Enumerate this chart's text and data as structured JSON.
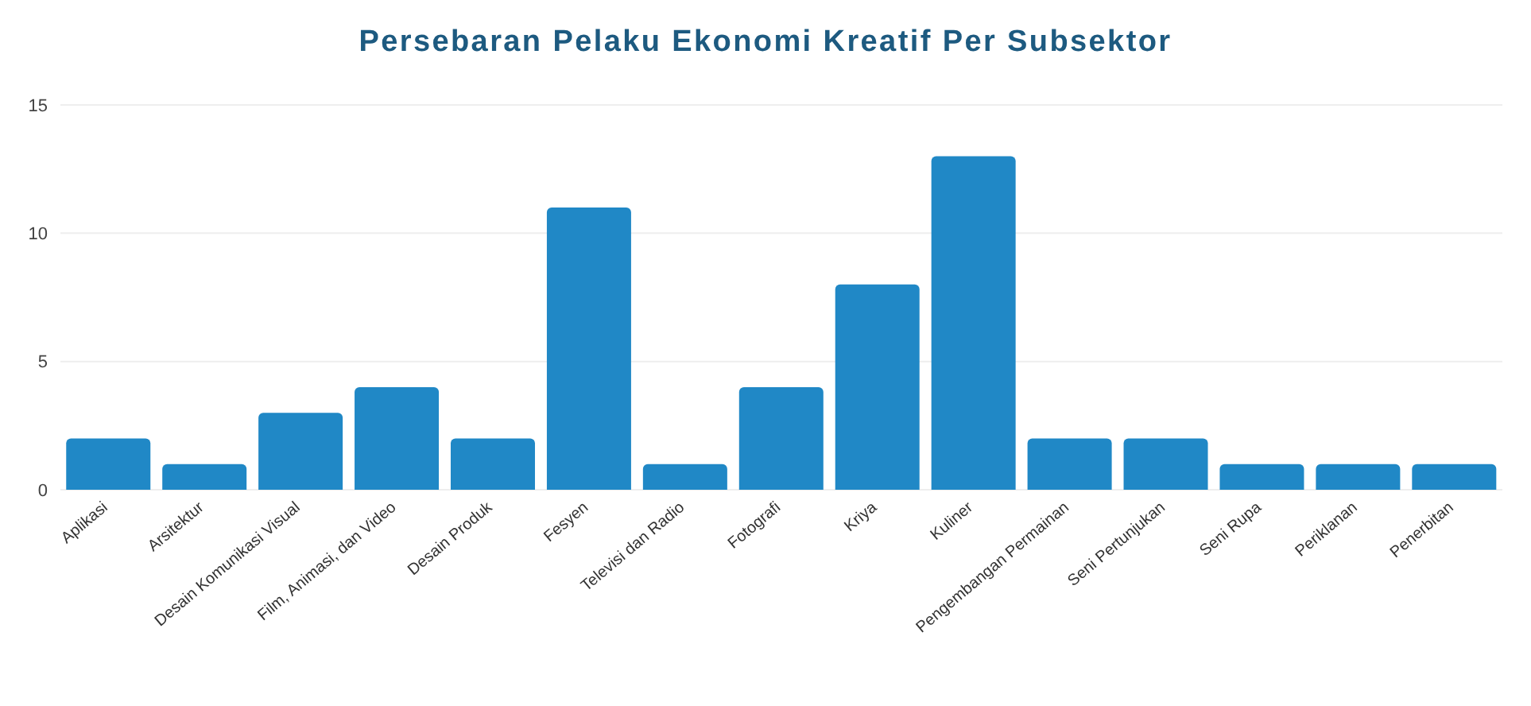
{
  "chart_data": {
    "type": "bar",
    "title": "Persebaran Pelaku Ekonomi Kreatif Per Subsektor",
    "categories": [
      "Aplikasi",
      "Arsitektur",
      "Desain Komunikasi Visual",
      "Film, Animasi, dan Video",
      "Desain Produk",
      "Fesyen",
      "Televisi dan Radio",
      "Fotografi",
      "Kriya",
      "Kuliner",
      "Pengembangan Permainan",
      "Seni Pertunjukan",
      "Seni Rupa",
      "Periklanan",
      "Penerbitan"
    ],
    "values": [
      2,
      1,
      3,
      4,
      2,
      11,
      1,
      4,
      8,
      13,
      2,
      2,
      1,
      1,
      1
    ],
    "color": "#2088c6",
    "ylim": [
      0,
      15
    ],
    "yticks": [
      0,
      5,
      10,
      15
    ],
    "grid": "y",
    "legend": false
  }
}
